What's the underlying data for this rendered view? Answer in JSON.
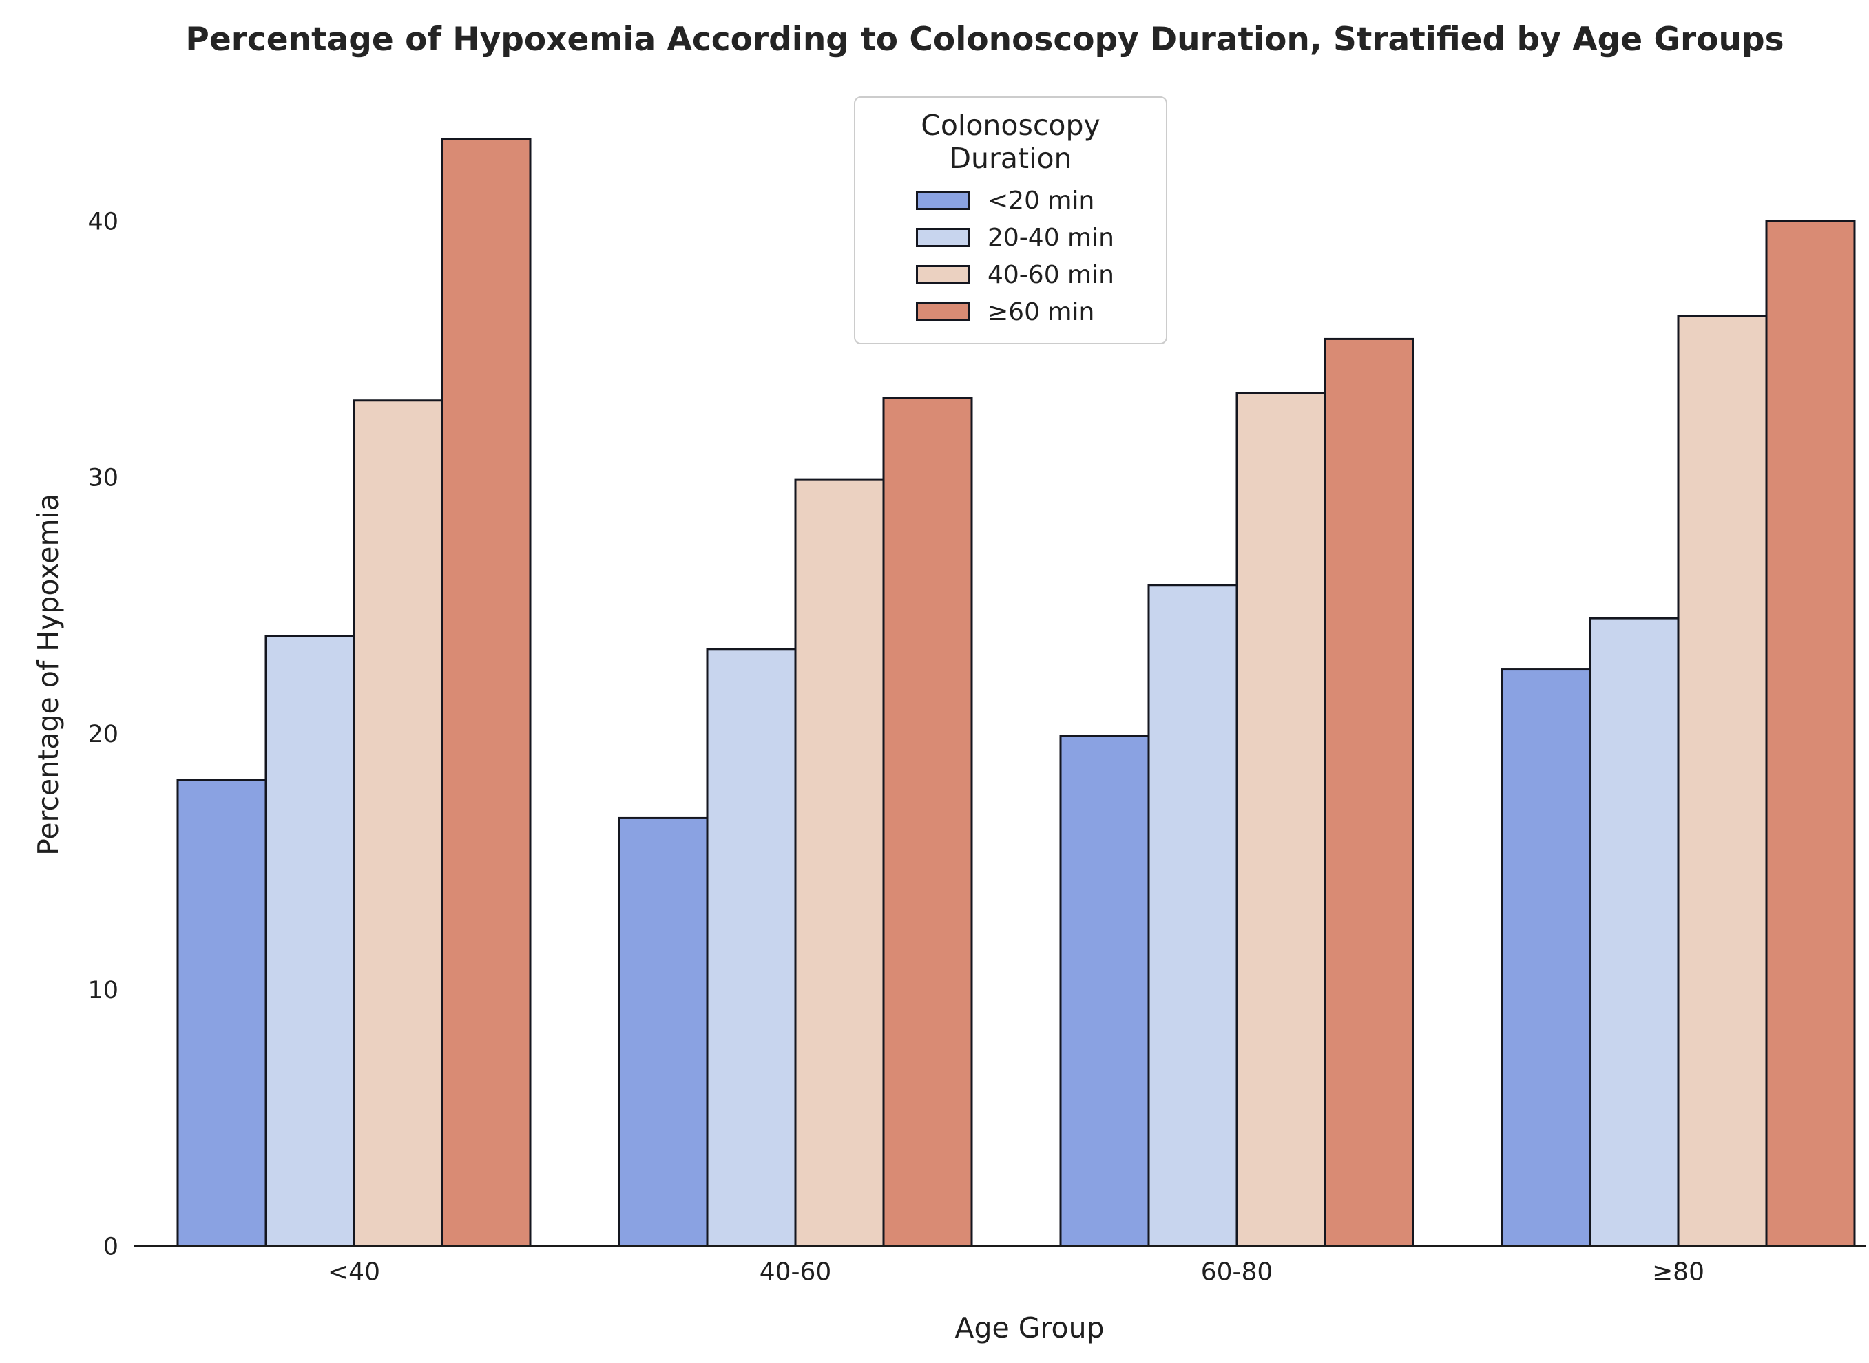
{
  "chart_data": {
    "type": "bar",
    "title": "Percentage of Hypoxemia According to Colonoscopy Duration, Stratified by Age Groups",
    "xlabel": "Age Group",
    "ylabel": "Percentage of Hypoxemia",
    "categories": [
      "<40",
      "40-60",
      "60-80",
      "≥80"
    ],
    "series": [
      {
        "name": "<20 min",
        "color": "#8aa2e2",
        "values": [
          18.2,
          16.7,
          19.9,
          22.5
        ]
      },
      {
        "name": "20-40 min",
        "color": "#c8d5ee",
        "values": [
          23.8,
          23.3,
          25.8,
          24.5
        ]
      },
      {
        "name": "40-60 min",
        "color": "#ebd1c1",
        "values": [
          33.0,
          29.9,
          33.3,
          36.3
        ]
      },
      {
        "name": "≥60 min",
        "color": "#d98b74",
        "values": [
          43.2,
          33.1,
          35.4,
          40.0
        ]
      }
    ],
    "yticks": [
      0,
      10,
      20,
      30,
      40
    ],
    "ylim": [
      0,
      44.6
    ],
    "grid": false,
    "legend": {
      "title": "Colonoscopy Duration",
      "position": "upper center"
    },
    "bar_edge_color": "#14161f",
    "axis_line_color": "#1a1a1a",
    "background_color": "#ffffff"
  }
}
